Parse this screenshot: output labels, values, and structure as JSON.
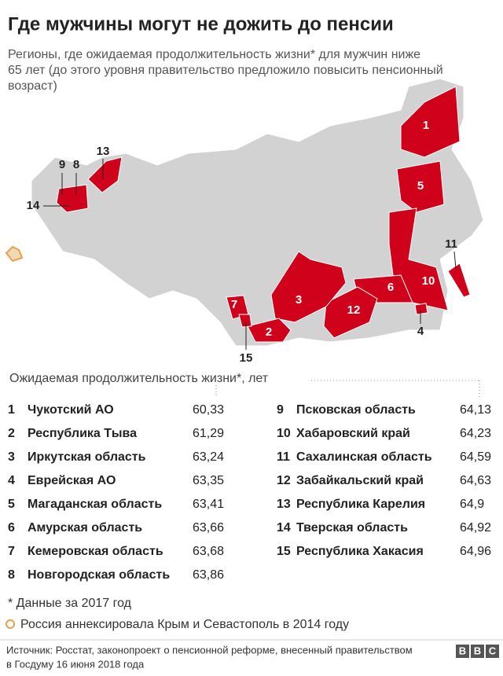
{
  "header": {
    "title": "Где мужчины могут не дожить до пенсии",
    "subtitle": [
      "Регионы, где ожидаемая продолжительность жизни* для мужчин ниже",
      "65 лет (до этого уровня правительство предложило повысить пенсионный",
      "возраст)"
    ]
  },
  "map": {
    "labels": [
      "1",
      "2",
      "3",
      "4",
      "5",
      "6",
      "7",
      "8",
      "9",
      "10",
      "11",
      "12",
      "13",
      "14",
      "15"
    ]
  },
  "table": {
    "heading": "Ожидаемая продолжительность жизни*, лет",
    "rows": [
      [
        "1",
        "Чукотский АО",
        "60,33"
      ],
      [
        "2",
        "Республика Тыва",
        "61,29"
      ],
      [
        "3",
        "Иркутская область",
        "63,24"
      ],
      [
        "4",
        "Еврейская АО",
        "63,35"
      ],
      [
        "5",
        "Магаданская область",
        "63,41"
      ],
      [
        "6",
        "Амурская область",
        "63,66"
      ],
      [
        "7",
        "Кемеровская область",
        "63,68"
      ],
      [
        "8",
        "Новгородская область",
        "63,86"
      ],
      [
        "9",
        "Псковская область",
        "64,13"
      ],
      [
        "10",
        "Хабаровский край",
        "64,23"
      ],
      [
        "11",
        "Сахалинская область",
        "64,59"
      ],
      [
        "12",
        "Забайкальский край",
        "64,63"
      ],
      [
        "13",
        "Республика Карелия",
        "64,9"
      ],
      [
        "14",
        "Тверская область",
        "64,92"
      ],
      [
        "15",
        "Республика Хакасия",
        "64,96"
      ]
    ]
  },
  "notes": [
    "* Данные за 2017 год",
    "Россия аннексировала Крым и Севастополь в 2014 году"
  ],
  "footer": {
    "source": [
      "Источник: Росстат, законопроект о пенсионной реформе, внесенный правительством",
      "в Госдуму 16 июня 2018 года"
    ],
    "logo": [
      "B",
      "B",
      "C"
    ]
  }
}
